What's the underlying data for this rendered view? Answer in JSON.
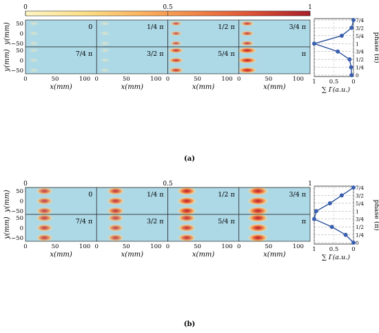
{
  "colors": {
    "background_field": "#add8e6",
    "colormap": [
      "#fdf5c4",
      "#fde08a",
      "#fbb45f",
      "#f08446",
      "#dc4f34",
      "#a81f29"
    ],
    "line": "#2a4f9c",
    "marker": "#3a5fb0"
  },
  "chart_data": [
    {
      "type": "heatmap",
      "panel_label": "(a)",
      "colorbar_ticks": [
        "0",
        "0.5",
        "1"
      ],
      "tiles_row1": [
        "0",
        "1/4 π",
        "1/2 π",
        "3/4 π"
      ],
      "tiles_row2": [
        "7/4 π",
        "3/2 π",
        "5/4 π",
        "π"
      ],
      "tile_intensity_row1": [
        0.12,
        0.14,
        0.3,
        0.45
      ],
      "tile_intensity_row2": [
        0.1,
        0.12,
        0.55,
        0.85
      ],
      "xlabel": "x(mm)",
      "ylabel": "y(mm)",
      "xticks": [
        "0",
        "50",
        "100"
      ],
      "yticks": [
        "50",
        "0",
        "−50"
      ],
      "side_plot": {
        "type": "line",
        "xlabel": "∑ I′(a.u.)",
        "ylabel": "phase (π)",
        "xticks": [
          "1",
          "0.5",
          "0"
        ],
        "phase_labels": [
          "7/4",
          "3/2",
          "5/4",
          "1",
          "3/4",
          "1/2",
          "1/4",
          "0"
        ],
        "values": [
          0.0,
          0.05,
          0.3,
          1.0,
          0.4,
          0.1,
          0.06,
          0.05
        ]
      }
    },
    {
      "type": "heatmap",
      "panel_label": "(b)",
      "colorbar_ticks": [
        "0",
        "0.5",
        "1"
      ],
      "tiles_row1": [
        "0",
        "1/4 π",
        "1/2 π",
        "3/4 π"
      ],
      "tiles_row2": [
        "7/4 π",
        "3/2 π",
        "5/4 π",
        "π"
      ],
      "tile_intensity_row1": [
        0.45,
        0.55,
        0.75,
        0.95
      ],
      "tile_intensity_row2": [
        0.45,
        0.4,
        0.6,
        0.9
      ],
      "xlabel": "x(mm)",
      "ylabel": "y(mm)",
      "xticks": [
        "0",
        "50",
        "100"
      ],
      "yticks": [
        "50",
        "0",
        "−50"
      ],
      "side_plot": {
        "type": "line",
        "xlabel": "∑ I′(a.u.)",
        "ylabel": "phase (π)",
        "xticks": [
          "1",
          "0.5",
          "0"
        ],
        "phase_labels": [
          "7/4",
          "3/2",
          "5/4",
          "1",
          "3/4",
          "1/2",
          "1/4",
          "0"
        ],
        "values": [
          0.0,
          0.3,
          0.6,
          0.95,
          1.0,
          0.55,
          0.2,
          0.0
        ]
      }
    }
  ]
}
